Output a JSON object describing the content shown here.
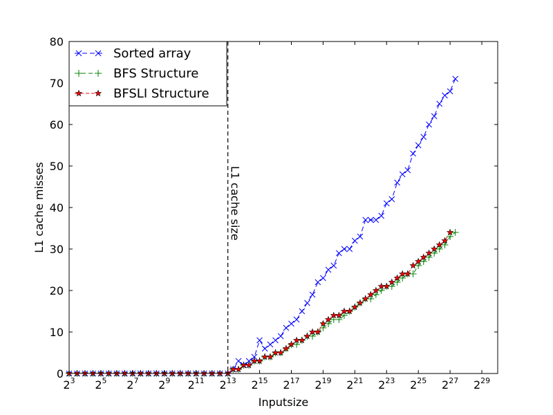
{
  "chart_data": {
    "type": "line",
    "title": "",
    "xlabel": "Inputsize",
    "ylabel": "L1 cache misses",
    "x_scale": "log2",
    "xlim_exponent": [
      3,
      30
    ],
    "ylim": [
      0,
      80
    ],
    "y_ticks": [
      0,
      10,
      20,
      30,
      40,
      50,
      60,
      70,
      80
    ],
    "x_ticks": [
      {
        "base": "2",
        "exp": "3"
      },
      {
        "base": "2",
        "exp": "5"
      },
      {
        "base": "2",
        "exp": "7"
      },
      {
        "base": "2",
        "exp": "9"
      },
      {
        "base": "2",
        "exp": "11"
      },
      {
        "base": "2",
        "exp": "13"
      },
      {
        "base": "2",
        "exp": "15"
      },
      {
        "base": "2",
        "exp": "17"
      },
      {
        "base": "2",
        "exp": "19"
      },
      {
        "base": "2",
        "exp": "21"
      },
      {
        "base": "2",
        "exp": "23"
      },
      {
        "base": "2",
        "exp": "25"
      },
      {
        "base": "2",
        "exp": "27"
      },
      {
        "base": "2",
        "exp": "29"
      }
    ],
    "grid": false,
    "legend_position": "top-left",
    "annotation": {
      "text": "L1 cache size",
      "x_exponent": 13,
      "style": "dashed vertical line"
    },
    "series": [
      {
        "name": "Sorted array",
        "color": "#0000ff",
        "marker": "x",
        "points": [
          [
            3.0,
            0
          ],
          [
            3.5,
            0
          ],
          [
            4.0,
            0
          ],
          [
            4.5,
            0
          ],
          [
            5.0,
            0
          ],
          [
            5.5,
            0
          ],
          [
            6.0,
            0
          ],
          [
            6.5,
            0
          ],
          [
            7.0,
            0
          ],
          [
            7.5,
            0
          ],
          [
            8.0,
            0
          ],
          [
            8.5,
            0
          ],
          [
            9.0,
            0
          ],
          [
            9.5,
            0
          ],
          [
            10.0,
            0
          ],
          [
            10.5,
            0
          ],
          [
            11.0,
            0
          ],
          [
            11.5,
            0
          ],
          [
            12.0,
            0
          ],
          [
            12.5,
            0
          ],
          [
            13.0,
            0
          ],
          [
            13.33,
            1
          ],
          [
            13.67,
            3
          ],
          [
            14.0,
            2
          ],
          [
            14.33,
            3
          ],
          [
            14.67,
            4
          ],
          [
            15.0,
            8
          ],
          [
            15.33,
            6
          ],
          [
            15.67,
            7
          ],
          [
            16.0,
            8
          ],
          [
            16.33,
            9
          ],
          [
            16.67,
            11
          ],
          [
            17.0,
            12
          ],
          [
            17.33,
            13
          ],
          [
            17.67,
            15
          ],
          [
            18.0,
            17
          ],
          [
            18.33,
            19
          ],
          [
            18.67,
            22
          ],
          [
            19.0,
            23
          ],
          [
            19.33,
            25
          ],
          [
            19.67,
            26
          ],
          [
            20.0,
            29
          ],
          [
            20.33,
            30
          ],
          [
            20.67,
            30
          ],
          [
            21.0,
            32
          ],
          [
            21.33,
            33
          ],
          [
            21.67,
            37
          ],
          [
            22.0,
            37
          ],
          [
            22.33,
            37
          ],
          [
            22.67,
            38
          ],
          [
            23.0,
            41
          ],
          [
            23.33,
            42
          ],
          [
            23.67,
            46
          ],
          [
            24.0,
            48
          ],
          [
            24.33,
            49
          ],
          [
            24.67,
            53
          ],
          [
            25.0,
            55
          ],
          [
            25.33,
            57
          ],
          [
            25.67,
            60
          ],
          [
            26.0,
            62
          ],
          [
            26.33,
            65
          ],
          [
            26.67,
            67
          ],
          [
            27.0,
            68
          ],
          [
            27.33,
            71
          ]
        ]
      },
      {
        "name": "BFS Structure",
        "color": "#008000",
        "marker": "+",
        "points": [
          [
            3.0,
            0
          ],
          [
            3.5,
            0
          ],
          [
            4.0,
            0
          ],
          [
            4.5,
            0
          ],
          [
            5.0,
            0
          ],
          [
            5.5,
            0
          ],
          [
            6.0,
            0
          ],
          [
            6.5,
            0
          ],
          [
            7.0,
            0
          ],
          [
            7.5,
            0
          ],
          [
            8.0,
            0
          ],
          [
            8.5,
            0
          ],
          [
            9.0,
            0
          ],
          [
            9.5,
            0
          ],
          [
            10.0,
            0
          ],
          [
            10.5,
            0
          ],
          [
            11.0,
            0
          ],
          [
            11.5,
            0
          ],
          [
            12.0,
            0
          ],
          [
            12.5,
            0
          ],
          [
            13.0,
            0
          ],
          [
            13.33,
            1
          ],
          [
            13.67,
            1
          ],
          [
            14.0,
            2
          ],
          [
            14.33,
            2
          ],
          [
            14.67,
            3
          ],
          [
            15.0,
            3
          ],
          [
            15.33,
            4
          ],
          [
            15.67,
            4
          ],
          [
            16.0,
            5
          ],
          [
            16.33,
            5
          ],
          [
            16.67,
            6
          ],
          [
            17.0,
            7
          ],
          [
            17.33,
            7
          ],
          [
            17.67,
            8
          ],
          [
            18.0,
            9
          ],
          [
            18.33,
            9
          ],
          [
            18.67,
            10
          ],
          [
            19.0,
            11
          ],
          [
            19.33,
            12
          ],
          [
            19.67,
            13
          ],
          [
            20.0,
            13
          ],
          [
            20.33,
            14
          ],
          [
            20.67,
            15
          ],
          [
            21.0,
            16
          ],
          [
            21.33,
            17
          ],
          [
            21.67,
            18
          ],
          [
            22.0,
            18
          ],
          [
            22.33,
            19
          ],
          [
            22.67,
            20
          ],
          [
            23.0,
            21
          ],
          [
            23.33,
            21
          ],
          [
            23.67,
            22
          ],
          [
            24.0,
            23
          ],
          [
            24.33,
            24
          ],
          [
            24.67,
            24
          ],
          [
            25.0,
            26
          ],
          [
            25.33,
            27
          ],
          [
            25.67,
            28
          ],
          [
            26.0,
            29
          ],
          [
            26.33,
            30
          ],
          [
            26.67,
            31
          ],
          [
            27.0,
            33
          ],
          [
            27.33,
            34
          ]
        ]
      },
      {
        "name": "BFSLI Structure",
        "color": "#ff0000",
        "marker": "*",
        "points": [
          [
            3.0,
            0
          ],
          [
            3.5,
            0
          ],
          [
            4.0,
            0
          ],
          [
            4.5,
            0
          ],
          [
            5.0,
            0
          ],
          [
            5.5,
            0
          ],
          [
            6.0,
            0
          ],
          [
            6.5,
            0
          ],
          [
            7.0,
            0
          ],
          [
            7.5,
            0
          ],
          [
            8.0,
            0
          ],
          [
            8.5,
            0
          ],
          [
            9.0,
            0
          ],
          [
            9.5,
            0
          ],
          [
            10.0,
            0
          ],
          [
            10.5,
            0
          ],
          [
            11.0,
            0
          ],
          [
            11.5,
            0
          ],
          [
            12.0,
            0
          ],
          [
            12.5,
            0
          ],
          [
            13.0,
            0
          ],
          [
            13.33,
            1
          ],
          [
            13.67,
            1
          ],
          [
            14.0,
            2
          ],
          [
            14.33,
            2
          ],
          [
            14.67,
            3
          ],
          [
            15.0,
            3
          ],
          [
            15.33,
            4
          ],
          [
            15.67,
            4
          ],
          [
            16.0,
            5
          ],
          [
            16.33,
            5
          ],
          [
            16.67,
            6
          ],
          [
            17.0,
            7
          ],
          [
            17.33,
            8
          ],
          [
            17.67,
            8
          ],
          [
            18.0,
            9
          ],
          [
            18.33,
            10
          ],
          [
            18.67,
            10
          ],
          [
            19.0,
            12
          ],
          [
            19.33,
            13
          ],
          [
            19.67,
            14
          ],
          [
            20.0,
            14
          ],
          [
            20.33,
            15
          ],
          [
            20.67,
            15
          ],
          [
            21.0,
            16
          ],
          [
            21.33,
            17
          ],
          [
            21.67,
            18
          ],
          [
            22.0,
            19
          ],
          [
            22.33,
            20
          ],
          [
            22.67,
            21
          ],
          [
            23.0,
            21
          ],
          [
            23.33,
            22
          ],
          [
            23.67,
            23
          ],
          [
            24.0,
            24
          ],
          [
            24.33,
            24
          ],
          [
            24.67,
            26
          ],
          [
            25.0,
            27
          ],
          [
            25.33,
            28
          ],
          [
            25.67,
            29
          ],
          [
            26.0,
            30
          ],
          [
            26.33,
            31
          ],
          [
            26.67,
            32
          ],
          [
            27.0,
            34
          ]
        ]
      }
    ]
  }
}
